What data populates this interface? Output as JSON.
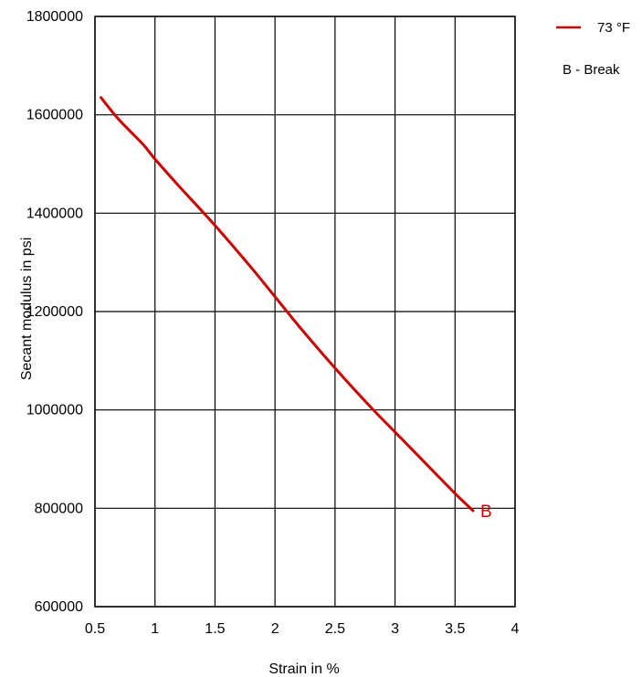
{
  "chart_data": {
    "type": "line",
    "xlabel": "Strain in %",
    "ylabel": "Secant modulus in psi",
    "xlim": [
      0.5,
      4
    ],
    "ylim": [
      600000,
      1800000
    ],
    "x_ticks": [
      0.5,
      1,
      1.5,
      2,
      2.5,
      3,
      3.5,
      4
    ],
    "y_ticks": [
      600000,
      800000,
      1000000,
      1200000,
      1400000,
      1600000,
      1800000
    ],
    "x_tick_labels": [
      "0.5",
      "1",
      "1.5",
      "2",
      "2.5",
      "3",
      "3.5",
      "4"
    ],
    "y_tick_labels": [
      "600000",
      "800000",
      "1000000",
      "1200000",
      "1400000",
      "1600000",
      "1800000"
    ],
    "grid": true,
    "legend_position": "top-right",
    "series": [
      {
        "name": "73 °F",
        "color": "#cc0000",
        "x": [
          0.55,
          0.7,
          0.9,
          1.0,
          1.2,
          1.5,
          1.8,
          2.0,
          2.2,
          2.5,
          2.8,
          3.0,
          3.3,
          3.5,
          3.65
        ],
        "y": [
          1635000,
          1590000,
          1540000,
          1510000,
          1455000,
          1375000,
          1290000,
          1230000,
          1170000,
          1085000,
          1005000,
          955000,
          880000,
          830000,
          795000
        ]
      }
    ],
    "annotations": [
      {
        "text": "B",
        "x": 3.65,
        "y": 795000,
        "color": "#cc0000"
      }
    ],
    "legend_note": "B - Break"
  }
}
